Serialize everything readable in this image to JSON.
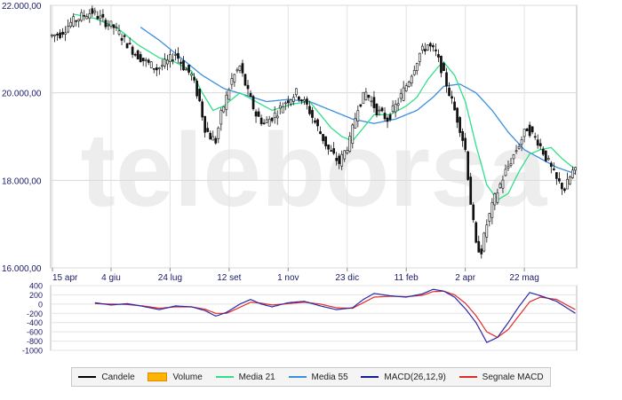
{
  "chart_data": [
    {
      "type": "candlestick",
      "watermark": "teleborsa",
      "x_ticks": [
        "15 apr",
        "4 giu",
        "24 lug",
        "12 set",
        "1 nov",
        "23 dic",
        "11 feb",
        "2 apr",
        "22 mag"
      ],
      "y_ticks": [
        "16.000,00",
        "18.000,00",
        "20.000,00",
        "22.000,00"
      ],
      "ylim": [
        16000,
        22000
      ],
      "grid": true,
      "series": [
        {
          "name": "Candele",
          "color": "#000000"
        },
        {
          "name": "Media 21",
          "color": "#2fe08a"
        },
        {
          "name": "Media 55",
          "color": "#3a8ee0"
        }
      ],
      "price_path": [
        [
          0,
          21300
        ],
        [
          4,
          21350
        ],
        [
          8,
          21600
        ],
        [
          12,
          21750
        ],
        [
          16,
          21850
        ],
        [
          20,
          21650
        ],
        [
          24,
          21500
        ],
        [
          28,
          21200
        ],
        [
          32,
          20900
        ],
        [
          36,
          20700
        ],
        [
          40,
          20550
        ],
        [
          44,
          20700
        ],
        [
          47,
          20900
        ],
        [
          50,
          20600
        ],
        [
          53,
          20400
        ],
        [
          56,
          19800
        ],
        [
          58,
          19200
        ],
        [
          60,
          19000
        ],
        [
          62,
          18900
        ],
        [
          64,
          19500
        ],
        [
          68,
          20300
        ],
        [
          71,
          20600
        ],
        [
          74,
          20000
        ],
        [
          77,
          19500
        ],
        [
          80,
          19300
        ],
        [
          84,
          19500
        ],
        [
          88,
          19800
        ],
        [
          92,
          20000
        ],
        [
          96,
          19700
        ],
        [
          100,
          19200
        ],
        [
          104,
          18700
        ],
        [
          108,
          18400
        ],
        [
          112,
          18900
        ],
        [
          115,
          19700
        ],
        [
          118,
          20000
        ],
        [
          122,
          19600
        ],
        [
          126,
          19400
        ],
        [
          130,
          19800
        ],
        [
          134,
          20300
        ],
        [
          138,
          20900
        ],
        [
          141,
          21100
        ],
        [
          144,
          20900
        ],
        [
          147,
          20400
        ],
        [
          150,
          19800
        ],
        [
          153,
          19200
        ],
        [
          155,
          18700
        ],
        [
          157,
          17500
        ],
        [
          159,
          16500
        ],
        [
          161,
          16400
        ],
        [
          163,
          17000
        ],
        [
          166,
          17600
        ],
        [
          170,
          18200
        ],
        [
          174,
          18700
        ],
        [
          178,
          19200
        ],
        [
          182,
          18900
        ],
        [
          186,
          18400
        ],
        [
          189,
          18000
        ],
        [
          192,
          17800
        ],
        [
          195,
          18200
        ]
      ],
      "ma21": [
        [
          8,
          21800
        ],
        [
          16,
          21700
        ],
        [
          24,
          21500
        ],
        [
          32,
          21100
        ],
        [
          40,
          20800
        ],
        [
          46,
          20700
        ],
        [
          52,
          20500
        ],
        [
          56,
          20000
        ],
        [
          60,
          19600
        ],
        [
          64,
          19700
        ],
        [
          70,
          20000
        ],
        [
          76,
          19800
        ],
        [
          82,
          19600
        ],
        [
          90,
          19750
        ],
        [
          96,
          19800
        ],
        [
          100,
          19500
        ],
        [
          104,
          19200
        ],
        [
          108,
          19000
        ],
        [
          112,
          18900
        ],
        [
          116,
          19200
        ],
        [
          120,
          19500
        ],
        [
          126,
          19500
        ],
        [
          132,
          19700
        ],
        [
          136,
          19900
        ],
        [
          140,
          20300
        ],
        [
          144,
          20600
        ],
        [
          146,
          20700
        ],
        [
          150,
          20400
        ],
        [
          154,
          19800
        ],
        [
          158,
          18800
        ],
        [
          162,
          17900
        ],
        [
          166,
          17550
        ],
        [
          170,
          17700
        ],
        [
          174,
          18200
        ],
        [
          178,
          18600
        ],
        [
          182,
          18700
        ],
        [
          186,
          18750
        ],
        [
          190,
          18500
        ],
        [
          195,
          18250
        ]
      ],
      "ma55": [
        [
          33,
          21500
        ],
        [
          40,
          21200
        ],
        [
          48,
          20800
        ],
        [
          56,
          20400
        ],
        [
          64,
          20100
        ],
        [
          72,
          19950
        ],
        [
          80,
          19800
        ],
        [
          88,
          19850
        ],
        [
          96,
          19800
        ],
        [
          104,
          19600
        ],
        [
          112,
          19400
        ],
        [
          120,
          19300
        ],
        [
          128,
          19400
        ],
        [
          136,
          19600
        ],
        [
          142,
          19900
        ],
        [
          146,
          20150
        ],
        [
          152,
          20200
        ],
        [
          158,
          20000
        ],
        [
          164,
          19600
        ],
        [
          170,
          19100
        ],
        [
          176,
          18700
        ],
        [
          182,
          18500
        ],
        [
          188,
          18300
        ],
        [
          195,
          18150
        ]
      ]
    },
    {
      "type": "line",
      "y_ticks": [
        "400",
        "200",
        "0",
        "-200",
        "-400",
        "-600",
        "-800",
        "-1000"
      ],
      "ylim": [
        -1000,
        400
      ],
      "grid": true,
      "series": [
        {
          "name": "MACD(26,12,9)",
          "color": "#2a2aa8",
          "values": [
            [
              16,
              30
            ],
            [
              22,
              -20
            ],
            [
              28,
              10
            ],
            [
              34,
              -50
            ],
            [
              40,
              -120
            ],
            [
              46,
              -40
            ],
            [
              52,
              -60
            ],
            [
              57,
              -140
            ],
            [
              61,
              -260
            ],
            [
              65,
              -180
            ],
            [
              70,
              0
            ],
            [
              74,
              100
            ],
            [
              78,
              0
            ],
            [
              82,
              -60
            ],
            [
              88,
              30
            ],
            [
              94,
              60
            ],
            [
              100,
              -40
            ],
            [
              106,
              -120
            ],
            [
              112,
              -80
            ],
            [
              116,
              100
            ],
            [
              120,
              230
            ],
            [
              126,
              180
            ],
            [
              132,
              150
            ],
            [
              138,
              220
            ],
            [
              142,
              320
            ],
            [
              146,
              280
            ],
            [
              150,
              150
            ],
            [
              154,
              -100
            ],
            [
              158,
              -400
            ],
            [
              162,
              -830
            ],
            [
              166,
              -720
            ],
            [
              170,
              -400
            ],
            [
              174,
              -50
            ],
            [
              178,
              250
            ],
            [
              182,
              180
            ],
            [
              188,
              60
            ],
            [
              195,
              -200
            ]
          ]
        },
        {
          "name": "Segnale MACD",
          "color": "#e02a2a",
          "values": [
            [
              16,
              10
            ],
            [
              22,
              0
            ],
            [
              28,
              -10
            ],
            [
              34,
              -40
            ],
            [
              40,
              -90
            ],
            [
              46,
              -60
            ],
            [
              52,
              -60
            ],
            [
              57,
              -110
            ],
            [
              61,
              -200
            ],
            [
              65,
              -200
            ],
            [
              70,
              -70
            ],
            [
              74,
              40
            ],
            [
              78,
              20
            ],
            [
              82,
              -20
            ],
            [
              88,
              10
            ],
            [
              94,
              40
            ],
            [
              100,
              0
            ],
            [
              106,
              -80
            ],
            [
              112,
              -90
            ],
            [
              116,
              30
            ],
            [
              120,
              150
            ],
            [
              126,
              170
            ],
            [
              132,
              160
            ],
            [
              138,
              190
            ],
            [
              142,
              270
            ],
            [
              146,
              280
            ],
            [
              150,
              200
            ],
            [
              154,
              20
            ],
            [
              158,
              -250
            ],
            [
              162,
              -600
            ],
            [
              166,
              -720
            ],
            [
              170,
              -550
            ],
            [
              174,
              -250
            ],
            [
              178,
              50
            ],
            [
              182,
              150
            ],
            [
              188,
              100
            ],
            [
              195,
              -120
            ]
          ]
        }
      ]
    }
  ],
  "legend": [
    {
      "label": "Candele",
      "color": "#000000"
    },
    {
      "label": "Volume",
      "color": "#ffb400"
    },
    {
      "label": "Media 21",
      "color": "#2fe08a"
    },
    {
      "label": "Media 55",
      "color": "#3a8ee0"
    },
    {
      "label": "MACD(26,12,9)",
      "color": "#1a1a99"
    },
    {
      "label": "Segnale MACD",
      "color": "#e02a2a"
    }
  ]
}
